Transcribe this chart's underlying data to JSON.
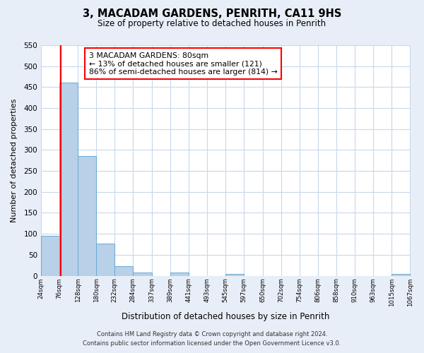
{
  "title": "3, MACADAM GARDENS, PENRITH, CA11 9HS",
  "subtitle": "Size of property relative to detached houses in Penrith",
  "xlabel": "Distribution of detached houses by size in Penrith",
  "ylabel": "Number of detached properties",
  "bin_edges": [
    24,
    76,
    128,
    180,
    232,
    284,
    337,
    389,
    441,
    493,
    545,
    597,
    650,
    702,
    754,
    806,
    858,
    910,
    963,
    1015,
    1067
  ],
  "bin_labels": [
    "24sqm",
    "76sqm",
    "128sqm",
    "180sqm",
    "232sqm",
    "284sqm",
    "337sqm",
    "389sqm",
    "441sqm",
    "493sqm",
    "545sqm",
    "597sqm",
    "650sqm",
    "702sqm",
    "754sqm",
    "806sqm",
    "858sqm",
    "910sqm",
    "963sqm",
    "1015sqm",
    "1067sqm"
  ],
  "counts": [
    95,
    460,
    285,
    77,
    22,
    8,
    0,
    7,
    0,
    0,
    4,
    0,
    0,
    0,
    0,
    0,
    0,
    0,
    0,
    4
  ],
  "bar_color": "#b8d0e8",
  "bar_edge_color": "#6aaad4",
  "vline_x": 80,
  "vline_color": "red",
  "annotation_line1": "3 MACADAM GARDENS: 80sqm",
  "annotation_line2": "← 13% of detached houses are smaller (121)",
  "annotation_line3": "86% of semi-detached houses are larger (814) →",
  "annotation_box_edgecolor": "red",
  "annotation_box_facecolor": "white",
  "ylim": [
    0,
    550
  ],
  "yticks": [
    0,
    50,
    100,
    150,
    200,
    250,
    300,
    350,
    400,
    450,
    500,
    550
  ],
  "footer_line1": "Contains HM Land Registry data © Crown copyright and database right 2024.",
  "footer_line2": "Contains public sector information licensed under the Open Government Licence v3.0.",
  "bg_color": "#e8eef7",
  "plot_bg_color": "#ffffff",
  "grid_color": "#c8d8ec"
}
